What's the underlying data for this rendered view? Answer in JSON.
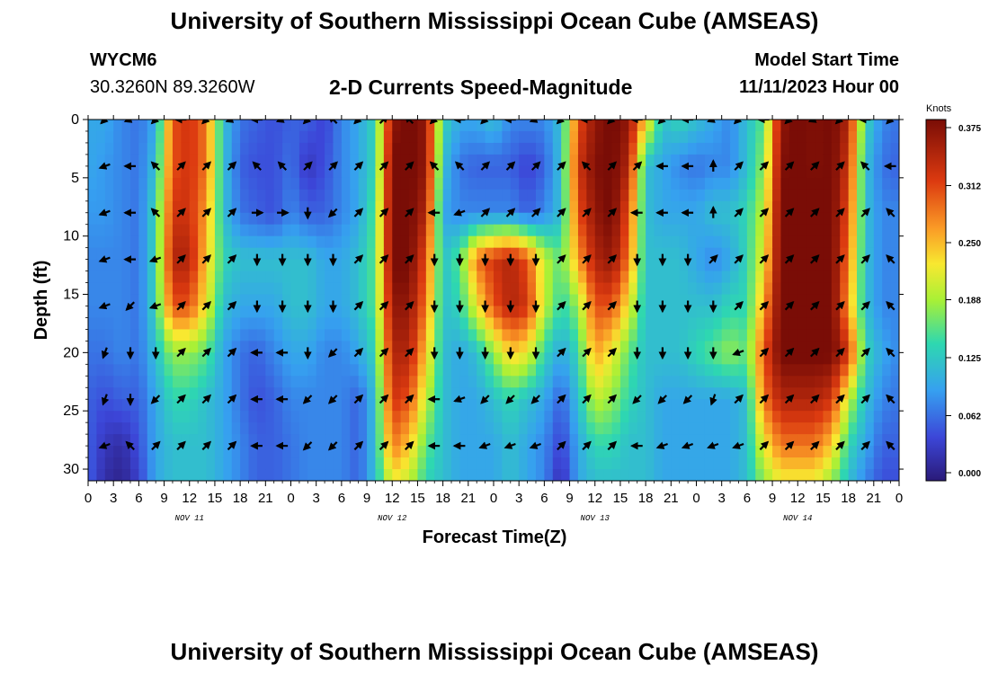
{
  "header": {
    "title": "University of Southern Mississippi Ocean Cube (AMSEAS)",
    "station_id": "WYCM6",
    "coords": "30.3260N  89.3260W",
    "subtitle": "2-D Currents Speed-Magnitude",
    "model_start_label": "Model Start Time",
    "model_start_value": "11/11/2023 Hour 00"
  },
  "footer": {
    "title": "University of Southern Mississippi Ocean Cube (AMSEAS)"
  },
  "chart_data": {
    "type": "heatmap",
    "title": "2-D Currents Speed-Magnitude",
    "xlabel": "Forecast Time(Z)",
    "ylabel": "Depth (ft)",
    "colorbar_label": "Knots",
    "colorbar_ticks": [
      "0.375",
      "0.312",
      "0.250",
      "0.188",
      "0.125",
      "0.062",
      "0.000"
    ],
    "colorbar_range": [
      0,
      0.375
    ],
    "xlim": [
      0,
      96
    ],
    "ylim": [
      0,
      31
    ],
    "x_tick_labels": [
      "0",
      "3",
      "6",
      "9",
      "12",
      "15",
      "18",
      "21",
      "0",
      "3",
      "6",
      "9",
      "12",
      "15",
      "18",
      "21",
      "0",
      "3",
      "6",
      "9",
      "12",
      "15",
      "18",
      "21",
      "0",
      "3",
      "6",
      "9",
      "12",
      "15",
      "18",
      "21",
      "0"
    ],
    "y_ticks": [
      0,
      5,
      10,
      15,
      20,
      25,
      30
    ],
    "y_tick_labels": [
      "0",
      "5",
      "10",
      "15",
      "20",
      "25",
      "30"
    ],
    "day_labels": [
      {
        "hour": 12,
        "label": "NOV 11"
      },
      {
        "hour": 36,
        "label": "NOV 12"
      },
      {
        "hour": 60,
        "label": "NOV 13"
      },
      {
        "hour": 84,
        "label": "NOV 14"
      }
    ],
    "depths": [
      0,
      4,
      8,
      12,
      16,
      20,
      24,
      28,
      31
    ],
    "hours": [
      0,
      2,
      4,
      6,
      8,
      10,
      12,
      14,
      16,
      18,
      20,
      22,
      24,
      26,
      28,
      30,
      32,
      34,
      36,
      38,
      40,
      42,
      44,
      46,
      48,
      50,
      52,
      54,
      56,
      58,
      60,
      62,
      64,
      66,
      68,
      70,
      72,
      74,
      76,
      78,
      80,
      82,
      84,
      86,
      88,
      90,
      92,
      94,
      96
    ],
    "speed_knots": [
      [
        0.1,
        0.1,
        0.08,
        0.07,
        0.1,
        0.3,
        0.32,
        0.28,
        0.12,
        0.07,
        0.06,
        0.05,
        0.06,
        0.06,
        0.04,
        0.08,
        0.1,
        0.14,
        0.36,
        0.38,
        0.36,
        0.14,
        0.1,
        0.1,
        0.12,
        0.08,
        0.08,
        0.08,
        0.12,
        0.3,
        0.36,
        0.38,
        0.36,
        0.24,
        0.12,
        0.14,
        0.12,
        0.1,
        0.08,
        0.12,
        0.16,
        0.36,
        0.38,
        0.37,
        0.38,
        0.34,
        0.14,
        0.08,
        0.07
      ],
      [
        0.1,
        0.09,
        0.08,
        0.07,
        0.12,
        0.3,
        0.32,
        0.28,
        0.12,
        0.06,
        0.05,
        0.05,
        0.07,
        0.03,
        0.05,
        0.08,
        0.1,
        0.14,
        0.38,
        0.38,
        0.36,
        0.12,
        0.07,
        0.06,
        0.06,
        0.06,
        0.04,
        0.06,
        0.12,
        0.32,
        0.37,
        0.38,
        0.34,
        0.12,
        0.1,
        0.08,
        0.07,
        0.08,
        0.08,
        0.12,
        0.18,
        0.37,
        0.38,
        0.37,
        0.38,
        0.32,
        0.12,
        0.07,
        0.06
      ],
      [
        0.09,
        0.09,
        0.08,
        0.07,
        0.14,
        0.32,
        0.32,
        0.26,
        0.12,
        0.07,
        0.06,
        0.05,
        0.08,
        0.06,
        0.06,
        0.08,
        0.1,
        0.16,
        0.38,
        0.38,
        0.34,
        0.1,
        0.08,
        0.08,
        0.08,
        0.08,
        0.06,
        0.08,
        0.12,
        0.3,
        0.36,
        0.38,
        0.3,
        0.12,
        0.1,
        0.1,
        0.1,
        0.12,
        0.12,
        0.14,
        0.2,
        0.38,
        0.38,
        0.38,
        0.38,
        0.3,
        0.12,
        0.08,
        0.08
      ],
      [
        0.08,
        0.08,
        0.08,
        0.07,
        0.14,
        0.34,
        0.34,
        0.24,
        0.14,
        0.12,
        0.12,
        0.12,
        0.12,
        0.12,
        0.1,
        0.1,
        0.12,
        0.16,
        0.38,
        0.38,
        0.3,
        0.12,
        0.16,
        0.28,
        0.32,
        0.34,
        0.3,
        0.2,
        0.16,
        0.26,
        0.34,
        0.36,
        0.28,
        0.12,
        0.12,
        0.12,
        0.1,
        0.08,
        0.1,
        0.14,
        0.22,
        0.38,
        0.38,
        0.38,
        0.38,
        0.28,
        0.12,
        0.08,
        0.08
      ],
      [
        0.08,
        0.08,
        0.08,
        0.07,
        0.14,
        0.3,
        0.3,
        0.22,
        0.12,
        0.1,
        0.1,
        0.1,
        0.12,
        0.12,
        0.1,
        0.1,
        0.12,
        0.16,
        0.36,
        0.36,
        0.28,
        0.12,
        0.14,
        0.22,
        0.3,
        0.34,
        0.32,
        0.2,
        0.14,
        0.18,
        0.3,
        0.3,
        0.22,
        0.12,
        0.12,
        0.12,
        0.12,
        0.12,
        0.14,
        0.14,
        0.26,
        0.38,
        0.38,
        0.38,
        0.38,
        0.26,
        0.12,
        0.08,
        0.08
      ],
      [
        0.07,
        0.07,
        0.08,
        0.07,
        0.12,
        0.18,
        0.18,
        0.16,
        0.1,
        0.07,
        0.06,
        0.08,
        0.1,
        0.1,
        0.08,
        0.08,
        0.1,
        0.14,
        0.34,
        0.34,
        0.24,
        0.12,
        0.1,
        0.12,
        0.18,
        0.24,
        0.22,
        0.14,
        0.1,
        0.14,
        0.26,
        0.22,
        0.16,
        0.12,
        0.12,
        0.12,
        0.14,
        0.16,
        0.18,
        0.16,
        0.3,
        0.38,
        0.38,
        0.38,
        0.38,
        0.32,
        0.14,
        0.1,
        0.08
      ],
      [
        0.06,
        0.05,
        0.06,
        0.06,
        0.1,
        0.14,
        0.14,
        0.12,
        0.1,
        0.07,
        0.05,
        0.06,
        0.08,
        0.08,
        0.08,
        0.08,
        0.06,
        0.12,
        0.32,
        0.3,
        0.2,
        0.12,
        0.1,
        0.1,
        0.12,
        0.14,
        0.12,
        0.1,
        0.06,
        0.12,
        0.2,
        0.18,
        0.14,
        0.12,
        0.1,
        0.1,
        0.1,
        0.1,
        0.1,
        0.12,
        0.28,
        0.34,
        0.34,
        0.34,
        0.32,
        0.2,
        0.12,
        0.08,
        0.07
      ],
      [
        0.06,
        0.03,
        0.02,
        0.05,
        0.1,
        0.12,
        0.12,
        0.12,
        0.1,
        0.08,
        0.06,
        0.06,
        0.07,
        0.08,
        0.08,
        0.08,
        0.06,
        0.12,
        0.28,
        0.24,
        0.16,
        0.12,
        0.1,
        0.1,
        0.1,
        0.12,
        0.1,
        0.08,
        0.04,
        0.1,
        0.14,
        0.14,
        0.12,
        0.12,
        0.1,
        0.1,
        0.1,
        0.1,
        0.1,
        0.12,
        0.22,
        0.28,
        0.28,
        0.28,
        0.24,
        0.14,
        0.1,
        0.06,
        0.06
      ],
      [
        0.06,
        0.02,
        0.01,
        0.04,
        0.1,
        0.12,
        0.12,
        0.12,
        0.1,
        0.08,
        0.06,
        0.06,
        0.07,
        0.08,
        0.08,
        0.08,
        0.06,
        0.12,
        0.22,
        0.2,
        0.14,
        0.12,
        0.1,
        0.1,
        0.1,
        0.12,
        0.1,
        0.08,
        0.02,
        0.1,
        0.12,
        0.12,
        0.12,
        0.12,
        0.1,
        0.1,
        0.1,
        0.1,
        0.1,
        0.12,
        0.18,
        0.22,
        0.22,
        0.22,
        0.18,
        0.12,
        0.08,
        0.05,
        0.05
      ]
    ],
    "arrow_depths": [
      0,
      4,
      8,
      12,
      16,
      20,
      24,
      28
    ],
    "arrow_hours": [
      2,
      5,
      8,
      11,
      14,
      17,
      20,
      23,
      26,
      29,
      32,
      35,
      38,
      41,
      44,
      47,
      50,
      53,
      56,
      59,
      62,
      65,
      68,
      71,
      74,
      77,
      80,
      83,
      86,
      89,
      92,
      95
    ],
    "arrow_directions_deg": [
      [
        225,
        250,
        225,
        270,
        225,
        250,
        270,
        250,
        225,
        315,
        225,
        45,
        315,
        225,
        270,
        225,
        270,
        250,
        225,
        270,
        225,
        270,
        225,
        270,
        250,
        225,
        270,
        225,
        250,
        225,
        270,
        225
      ],
      [
        250,
        270,
        315,
        45,
        45,
        45,
        315,
        315,
        45,
        45,
        45,
        45,
        45,
        315,
        315,
        45,
        45,
        45,
        45,
        315,
        45,
        45,
        270,
        270,
        0,
        45,
        45,
        45,
        45,
        45,
        315,
        270
      ],
      [
        250,
        270,
        315,
        45,
        45,
        45,
        90,
        90,
        180,
        225,
        45,
        45,
        45,
        270,
        250,
        45,
        45,
        45,
        45,
        45,
        45,
        270,
        270,
        270,
        0,
        45,
        45,
        45,
        45,
        45,
        45,
        315
      ],
      [
        250,
        270,
        250,
        45,
        45,
        45,
        180,
        180,
        180,
        180,
        45,
        45,
        45,
        180,
        180,
        180,
        180,
        180,
        45,
        45,
        45,
        180,
        180,
        180,
        45,
        45,
        45,
        45,
        45,
        45,
        45,
        315
      ],
      [
        250,
        225,
        250,
        45,
        45,
        45,
        180,
        180,
        180,
        180,
        45,
        45,
        45,
        180,
        180,
        180,
        180,
        180,
        45,
        45,
        45,
        180,
        180,
        180,
        180,
        45,
        45,
        45,
        45,
        45,
        45,
        315
      ],
      [
        200,
        180,
        180,
        45,
        45,
        45,
        270,
        270,
        180,
        225,
        45,
        45,
        45,
        180,
        180,
        180,
        180,
        180,
        45,
        45,
        45,
        180,
        180,
        180,
        180,
        250,
        45,
        45,
        45,
        45,
        45,
        315
      ],
      [
        200,
        180,
        225,
        45,
        45,
        45,
        270,
        270,
        225,
        225,
        45,
        45,
        45,
        270,
        250,
        225,
        225,
        225,
        45,
        45,
        45,
        225,
        225,
        225,
        200,
        45,
        45,
        45,
        45,
        45,
        45,
        315
      ],
      [
        250,
        315,
        45,
        45,
        45,
        45,
        270,
        270,
        225,
        225,
        45,
        45,
        45,
        270,
        270,
        250,
        250,
        250,
        45,
        45,
        45,
        270,
        250,
        250,
        250,
        250,
        45,
        45,
        45,
        45,
        45,
        315
      ]
    ]
  }
}
